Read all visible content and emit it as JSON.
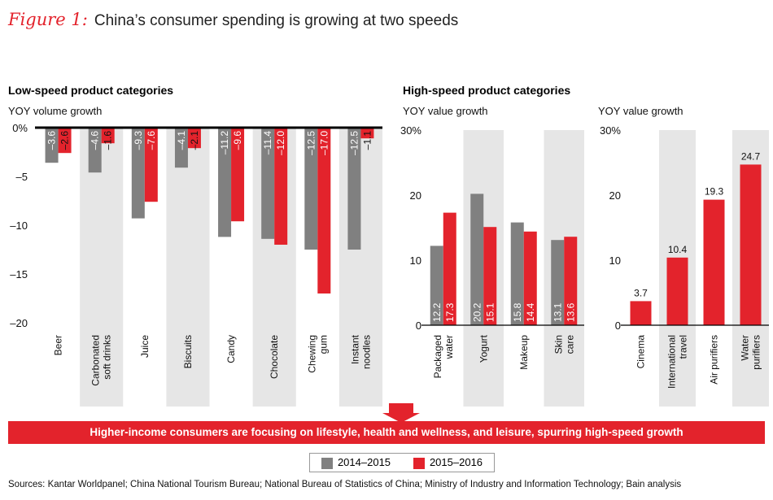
{
  "title": {
    "figure_label": "Figure 1:",
    "text": "China’s consumer spending is growing at two speeds"
  },
  "colors": {
    "series1": "#808080",
    "series2": "#e3232c",
    "shade": "#e6e6e6"
  },
  "chart_data": [
    {
      "type": "bar",
      "title": "Low-speed product categories",
      "ylabel": "YOY volume growth",
      "ylim": [
        -20,
        0
      ],
      "yticks": [
        "0%",
        "–5",
        "–10",
        "–15",
        "–20"
      ],
      "categories": [
        "Beer",
        "Carbonated soft drinks",
        "Juice",
        "Biscuits",
        "Candy",
        "Chocolate",
        "Chewing gum",
        "Instant noodles"
      ],
      "series": [
        {
          "name": "2014–2015",
          "values": [
            -3.6,
            -4.6,
            -9.3,
            -4.1,
            -11.2,
            -11.4,
            -12.5,
            -12.5
          ],
          "labels": [
            "–3.6",
            "–4.6",
            "–9.3",
            "–4.1",
            "–11.2",
            "–11.4",
            "–12.5",
            "–12.5"
          ]
        },
        {
          "name": "2015–2016",
          "values": [
            -2.6,
            -1.6,
            -7.6,
            -2.1,
            -9.6,
            -12.0,
            -17.0,
            -1.1
          ],
          "labels": [
            "–2.6",
            "–1.6",
            "–7.6",
            "–2.1",
            "–9.6",
            "–12.0",
            "–17.0",
            "–1.1"
          ]
        }
      ]
    },
    {
      "type": "bar",
      "title": "High-speed product categories",
      "ylabel": "YOY value growth",
      "ylim": [
        0,
        30
      ],
      "yticks": [
        "30%",
        "20",
        "10",
        "0"
      ],
      "categories": [
        "Packaged water",
        "Yogurt",
        "Makeup",
        "Skin care"
      ],
      "series": [
        {
          "name": "2014–2015",
          "values": [
            12.2,
            20.2,
            15.8,
            13.1
          ],
          "labels": [
            "12.2",
            "20.2",
            "15.8",
            "13.1"
          ]
        },
        {
          "name": "2015–2016",
          "values": [
            17.3,
            15.1,
            14.4,
            13.6
          ],
          "labels": [
            "17.3",
            "15.1",
            "14.4",
            "13.6"
          ]
        }
      ]
    },
    {
      "type": "bar",
      "title": "",
      "ylabel": "YOY value growth",
      "ylim": [
        0,
        30
      ],
      "yticks": [
        "30%",
        "20",
        "10",
        "0"
      ],
      "categories": [
        "Cinema",
        "International travel",
        "Air purifiers",
        "Water purifiers"
      ],
      "series": [
        {
          "name": "2015–2016",
          "values": [
            3.7,
            10.4,
            19.3,
            24.7
          ],
          "labels": [
            "3.7",
            "10.4",
            "19.3",
            "24.7"
          ]
        }
      ]
    }
  ],
  "banner": "Higher-income consumers are focusing on lifestyle, health and wellness, and leisure, spurring high-speed growth",
  "legend": [
    {
      "label": "2014–2015"
    },
    {
      "label": "2015–2016"
    }
  ],
  "source": "Sources: Kantar Worldpanel; China National Tourism Bureau; National Bureau of Statistics of China; Ministry of Industry and Information Technology; Bain analysis"
}
